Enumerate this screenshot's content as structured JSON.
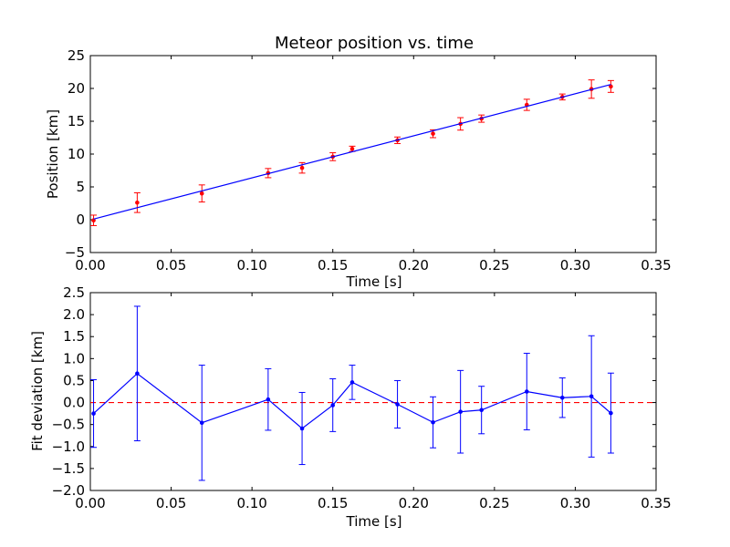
{
  "chart_data": [
    {
      "type": "line",
      "title": "Meteor position vs. time",
      "xlabel": "Time [s]",
      "ylabel": "Position [km]",
      "xlim": [
        0.0,
        0.35
      ],
      "ylim": [
        -5,
        25
      ],
      "xticks": [
        "0.00",
        "0.05",
        "0.10",
        "0.15",
        "0.20",
        "0.25",
        "0.30",
        "0.35"
      ],
      "yticks": [
        "−5",
        "0",
        "5",
        "10",
        "15",
        "20",
        "25"
      ],
      "grid": false,
      "series": [
        {
          "kind": "errorbar",
          "color": "#ff0000",
          "x": [
            0.002,
            0.029,
            0.069,
            0.11,
            0.131,
            0.15,
            0.162,
            0.19,
            0.212,
            0.229,
            0.242,
            0.27,
            0.292,
            0.31,
            0.322
          ],
          "y": [
            -0.1,
            2.6,
            4.0,
            7.1,
            7.9,
            9.6,
            10.8,
            12.1,
            13.1,
            14.6,
            15.4,
            17.5,
            18.7,
            19.9,
            20.3
          ],
          "yerr": [
            0.8,
            1.5,
            1.3,
            0.7,
            0.8,
            0.6,
            0.4,
            0.5,
            0.6,
            0.95,
            0.55,
            0.85,
            0.45,
            1.4,
            0.9
          ]
        },
        {
          "kind": "line",
          "color": "#0000ff",
          "x": [
            0.002,
            0.322
          ],
          "y": [
            0.1,
            20.6
          ]
        }
      ]
    },
    {
      "type": "line",
      "title": "",
      "xlabel": "Time [s]",
      "ylabel": "Fit deviation [km]",
      "xlim": [
        0.0,
        0.35
      ],
      "ylim": [
        -2.0,
        2.5
      ],
      "xticks": [
        "0.00",
        "0.05",
        "0.10",
        "0.15",
        "0.20",
        "0.25",
        "0.30",
        "0.35"
      ],
      "yticks": [
        "−2.0",
        "−1.5",
        "−1.0",
        "−0.5",
        "0.0",
        "0.5",
        "1.0",
        "1.5",
        "2.0",
        "2.5"
      ],
      "grid": false,
      "reference_line": {
        "y": 0.0,
        "style": "dashed",
        "color": "#ff0000"
      },
      "series": [
        {
          "kind": "errorbar-line",
          "color": "#0000ff",
          "x": [
            0.002,
            0.029,
            0.069,
            0.11,
            0.131,
            0.15,
            0.162,
            0.19,
            0.212,
            0.229,
            0.242,
            0.27,
            0.292,
            0.31,
            0.322
          ],
          "y": [
            -0.25,
            0.66,
            -0.46,
            0.07,
            -0.59,
            -0.06,
            0.46,
            -0.04,
            -0.45,
            -0.21,
            -0.17,
            0.25,
            0.11,
            0.14,
            -0.24
          ],
          "yerr": [
            0.77,
            1.53,
            1.31,
            0.7,
            0.82,
            0.6,
            0.39,
            0.54,
            0.58,
            0.94,
            0.54,
            0.87,
            0.45,
            1.38,
            0.91
          ]
        }
      ]
    }
  ]
}
